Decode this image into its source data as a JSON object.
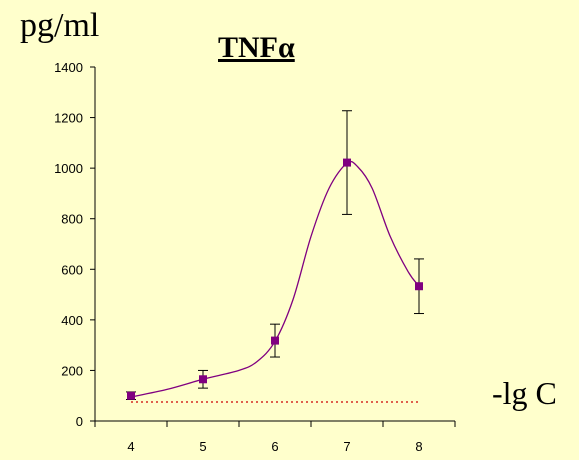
{
  "chart_data": {
    "type": "line",
    "title": "TNFα",
    "ylabel": "pg/ml",
    "xlabel": "-lg C",
    "x": [
      4,
      5,
      6,
      7,
      8
    ],
    "xticks": [
      "4",
      "5",
      "6",
      "7",
      "8"
    ],
    "yticks": [
      "0",
      "200",
      "400",
      "600",
      "800",
      "1000",
      "1200",
      "1400"
    ],
    "ylim": [
      0,
      1400
    ],
    "xlim": [
      3.5,
      8.5
    ],
    "series": [
      {
        "values": [
          100,
          165,
          318,
          1022,
          533
        ],
        "error": [
          15,
          35,
          65,
          205,
          108
        ],
        "color": "#800080"
      }
    ],
    "smooth_curve": [
      [
        4,
        95
      ],
      [
        4.5,
        125
      ],
      [
        5,
        165
      ],
      [
        5.5,
        200
      ],
      [
        5.75,
        235
      ],
      [
        6,
        315
      ],
      [
        6.25,
        480
      ],
      [
        6.5,
        730
      ],
      [
        6.75,
        920
      ],
      [
        7,
        1020
      ],
      [
        7.15,
        1005
      ],
      [
        7.35,
        920
      ],
      [
        7.6,
        730
      ],
      [
        7.85,
        590
      ],
      [
        8,
        533
      ]
    ],
    "baseline": {
      "value": 75,
      "color": "#CC0000"
    },
    "colors": {
      "background": "#FFFFCC",
      "axis": "#000000",
      "series": "#800080"
    }
  }
}
